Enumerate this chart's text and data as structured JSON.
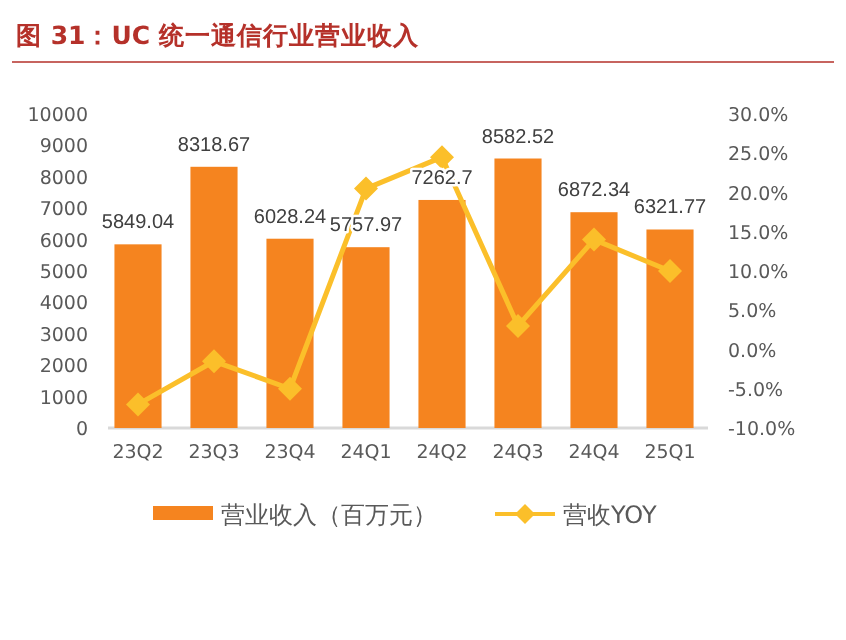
{
  "chart_data": {
    "type": "bar",
    "title": "图 31：UC 统一通信行业营业收入",
    "categories": [
      "23Q2",
      "23Q3",
      "23Q4",
      "24Q1",
      "24Q2",
      "24Q3",
      "24Q4",
      "25Q1"
    ],
    "series": [
      {
        "name": "营业收入（百万元）",
        "color": "#f5841f",
        "values": [
          5849.04,
          8318.67,
          6028.24,
          5757.97,
          7262.7,
          8582.52,
          6872.34,
          6321.77
        ],
        "data_labels": true
      },
      {
        "name": "营收YOY",
        "type": "line",
        "axis": "y2",
        "color": "#fbbf2a",
        "marker": "diamond",
        "values": [
          -7,
          -1.5,
          -5,
          20.5,
          24.5,
          3,
          14,
          10
        ]
      }
    ],
    "ylim": [
      0,
      10000
    ],
    "yticks": [
      0,
      1000,
      2000,
      3000,
      4000,
      5000,
      6000,
      7000,
      8000,
      9000,
      10000
    ],
    "y2lim": [
      -10,
      30
    ],
    "y2ticks": [
      {
        "value": -10,
        "label": "-10.0%"
      },
      {
        "value": -5,
        "label": "-5.0%"
      },
      {
        "value": 0,
        "label": "0.0%"
      },
      {
        "value": 5,
        "label": "5.0%"
      },
      {
        "value": 10,
        "label": "10.0%"
      },
      {
        "value": 15,
        "label": "15.0%"
      },
      {
        "value": 20,
        "label": "20.0%"
      },
      {
        "value": 25,
        "label": "25.0%"
      },
      {
        "value": 30,
        "label": "30.0%"
      }
    ],
    "grid": false,
    "legend": "bottom"
  }
}
